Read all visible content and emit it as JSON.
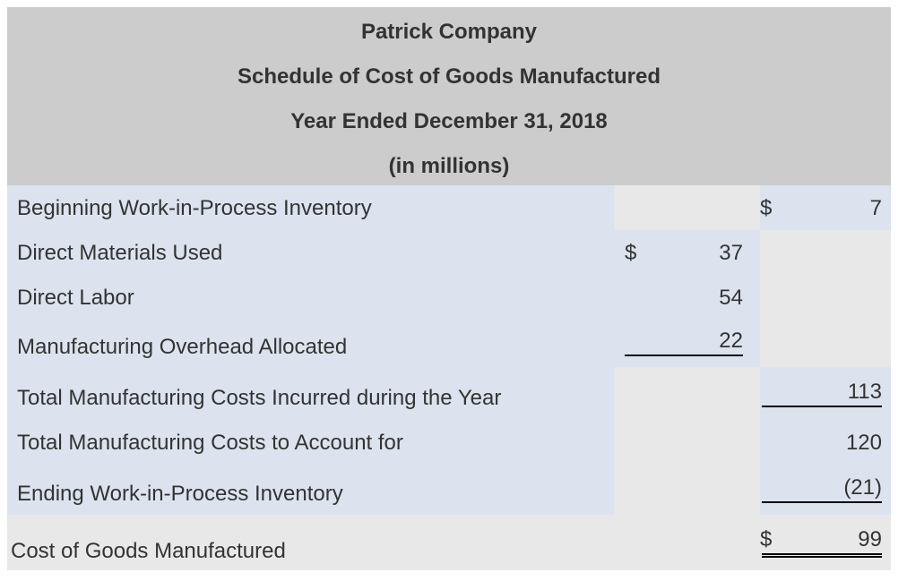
{
  "header": {
    "company": "Patrick Company",
    "statement": "Schedule of Cost of Goods Manufactured",
    "period": "Year Ended December 31, 2018",
    "units": "(in millions)"
  },
  "rows": {
    "beginning_wip": {
      "label": "Beginning Work-in-Process Inventory",
      "currency": "$",
      "total": "7"
    },
    "direct_materials": {
      "label": "Direct Materials Used",
      "currency": "$",
      "amount": "37"
    },
    "direct_labor": {
      "label": "Direct Labor",
      "amount": "54"
    },
    "overhead": {
      "label": "Manufacturing Overhead Allocated",
      "amount": "22"
    },
    "total_incurred": {
      "label": "Total Manufacturing Costs Incurred during the Year",
      "total": "113"
    },
    "total_account": {
      "label": "Total Manufacturing Costs to Account for",
      "total": "120"
    },
    "ending_wip": {
      "label": "Ending Work-in-Process Inventory",
      "total": "(21)"
    },
    "cogm": {
      "label": "Cost of Goods Manufactured",
      "currency": "$",
      "total": "99"
    }
  },
  "colors": {
    "header_bg": "#cccccc",
    "row_light_blue": "#dce3ee",
    "cell_gray": "#e8e8e8",
    "cell_light": "#f0f0f0"
  }
}
